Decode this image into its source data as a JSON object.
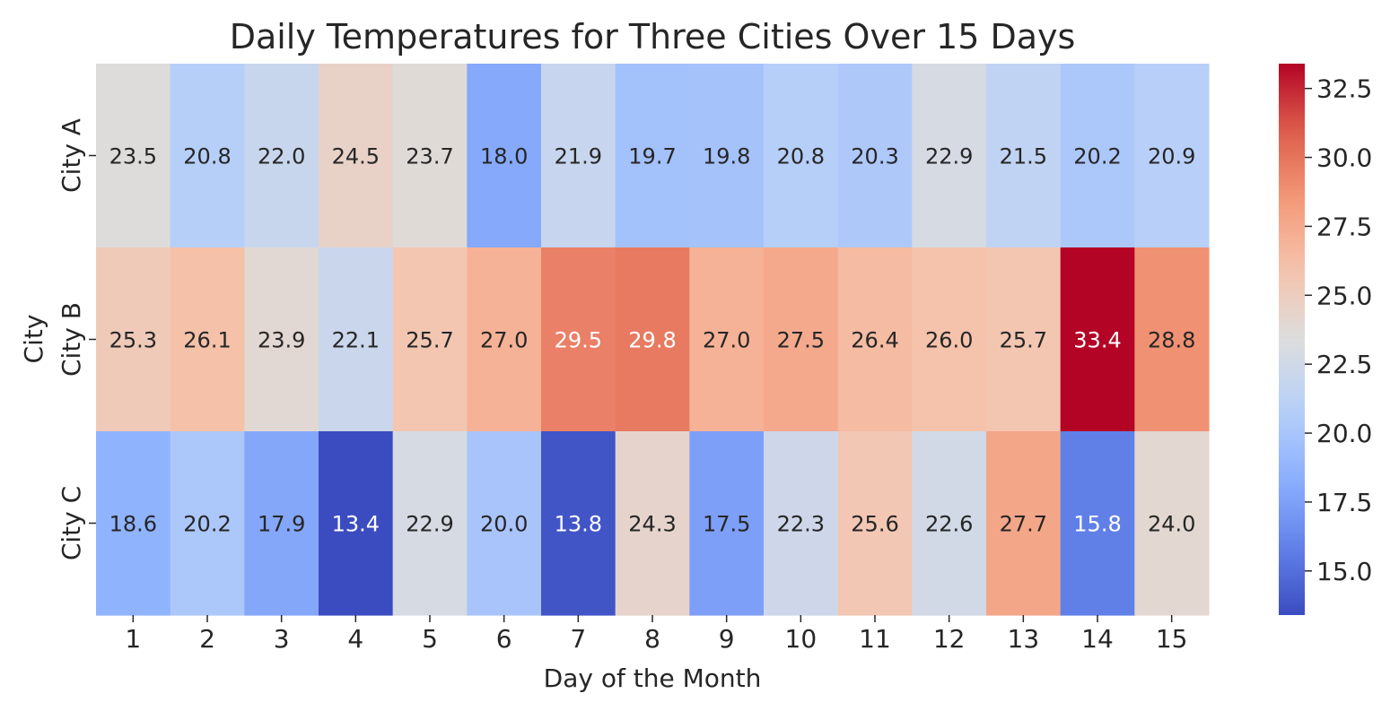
{
  "chart_data": {
    "type": "heatmap",
    "title": "Daily Temperatures for Three Cities Over 15 Days",
    "xlabel": "Day of the Month",
    "ylabel": "City",
    "x": [
      "1",
      "2",
      "3",
      "4",
      "5",
      "6",
      "7",
      "8",
      "9",
      "10",
      "11",
      "12",
      "13",
      "14",
      "15"
    ],
    "y": [
      "City A",
      "City B",
      "City C"
    ],
    "values": [
      [
        23.5,
        20.8,
        22.0,
        24.5,
        23.7,
        18.0,
        21.9,
        19.7,
        19.8,
        20.8,
        20.3,
        22.9,
        21.5,
        20.2,
        20.9
      ],
      [
        25.3,
        26.1,
        23.9,
        22.1,
        25.7,
        27.0,
        29.5,
        29.8,
        27.0,
        27.5,
        26.4,
        26.0,
        25.7,
        33.4,
        28.8
      ],
      [
        18.6,
        20.2,
        17.9,
        13.4,
        22.9,
        20.0,
        13.8,
        24.3,
        17.5,
        22.3,
        25.6,
        22.6,
        27.7,
        15.8,
        24.0
      ]
    ],
    "value_labels": [
      [
        "23.5",
        "20.8",
        "22.0",
        "24.5",
        "23.7",
        "18.0",
        "21.9",
        "19.7",
        "19.8",
        "20.8",
        "20.3",
        "22.9",
        "21.5",
        "20.2",
        "20.9"
      ],
      [
        "25.3",
        "26.1",
        "23.9",
        "22.1",
        "25.7",
        "27.0",
        "29.5",
        "29.8",
        "27.0",
        "27.5",
        "26.4",
        "26.0",
        "25.7",
        "33.4",
        "28.8"
      ],
      [
        "18.6",
        "20.2",
        "17.9",
        "13.4",
        "22.9",
        "20.0",
        "13.8",
        "24.3",
        "17.5",
        "22.3",
        "25.6",
        "22.6",
        "27.7",
        "15.8",
        "24.0"
      ]
    ],
    "colormap": "coolwarm",
    "vmin": 13.4,
    "vmax": 33.4,
    "colorbar_ticks": [
      15.0,
      17.5,
      20.0,
      22.5,
      25.0,
      27.5,
      30.0,
      32.5
    ],
    "colorbar_tick_labels": [
      "15.0",
      "17.5",
      "20.0",
      "22.5",
      "25.0",
      "27.5",
      "30.0",
      "32.5"
    ],
    "annotations": true,
    "grid": false
  }
}
